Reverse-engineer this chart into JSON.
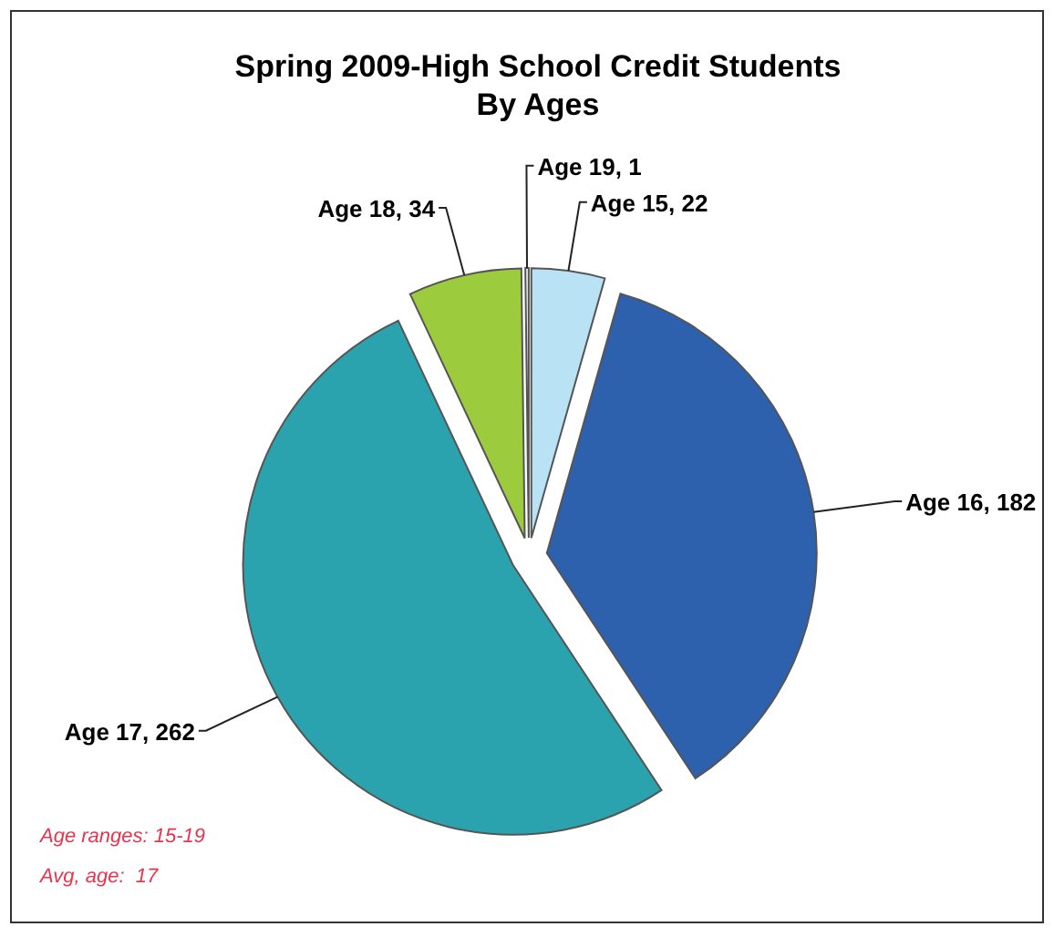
{
  "chart_data": {
    "type": "pie",
    "title": "Spring 2009-High School Credit Students\nBy Ages",
    "categories": [
      "Age 15",
      "Age 16",
      "Age 17",
      "Age 18",
      "Age 19"
    ],
    "values": [
      22,
      182,
      262,
      34,
      1
    ],
    "colors": [
      "#b9e3f4",
      "#2d60ad",
      "#2aa3ae",
      "#9ccb3d",
      "#f2f4f4"
    ],
    "value_labels": [
      ", 22",
      ", 182",
      ", 262",
      ", 34",
      ", 1"
    ],
    "legend": false,
    "annotations": [
      "Age ranges: 15-19",
      "Avg, age:  17"
    ]
  }
}
